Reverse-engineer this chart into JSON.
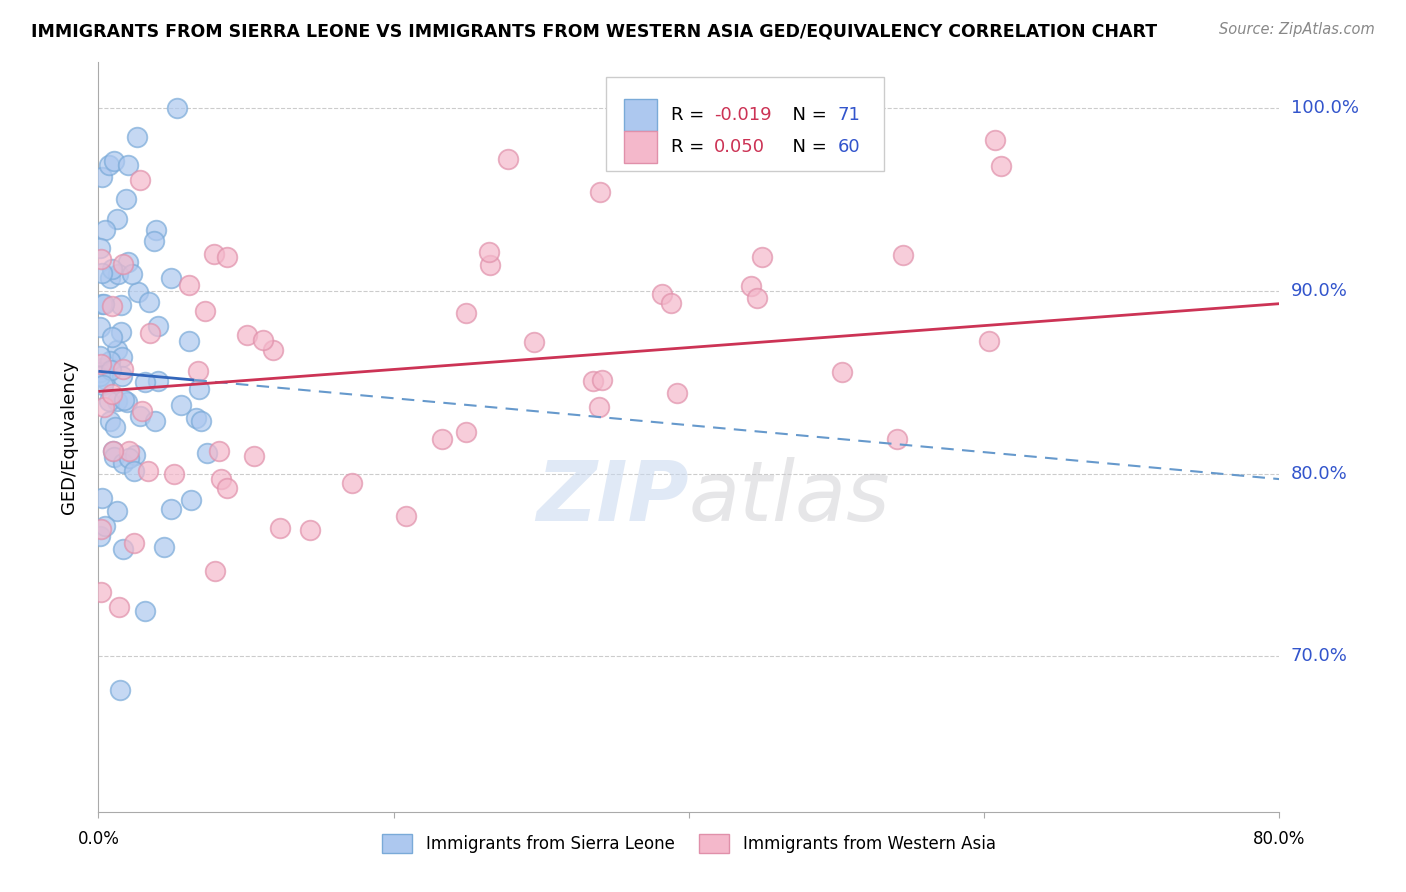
{
  "title": "IMMIGRANTS FROM SIERRA LEONE VS IMMIGRANTS FROM WESTERN ASIA GED/EQUIVALENCY CORRELATION CHART",
  "source": "Source: ZipAtlas.com",
  "ylabel": "GED/Equivalency",
  "ytick_labels": [
    "100.0%",
    "90.0%",
    "80.0%",
    "70.0%"
  ],
  "ytick_values": [
    1.0,
    0.9,
    0.8,
    0.7
  ],
  "xlim": [
    0.0,
    0.8
  ],
  "ylim": [
    0.615,
    1.025
  ],
  "blue_color": "#adc8ef",
  "pink_color": "#f4b8cb",
  "blue_edge": "#7aaad8",
  "pink_edge": "#e090aa",
  "trend_blue_solid_color": "#3366bb",
  "trend_blue_dash_color": "#6699cc",
  "trend_pink_color": "#cc3355",
  "legend_label_color": "#3355cc",
  "legend_R_color": "#cc3355",
  "watermark_zip_color": "#c8d8ef",
  "watermark_atlas_color": "#c8c8cc",
  "bottom_legend_labels": [
    "Immigrants from Sierra Leone",
    "Immigrants from Western Asia"
  ]
}
